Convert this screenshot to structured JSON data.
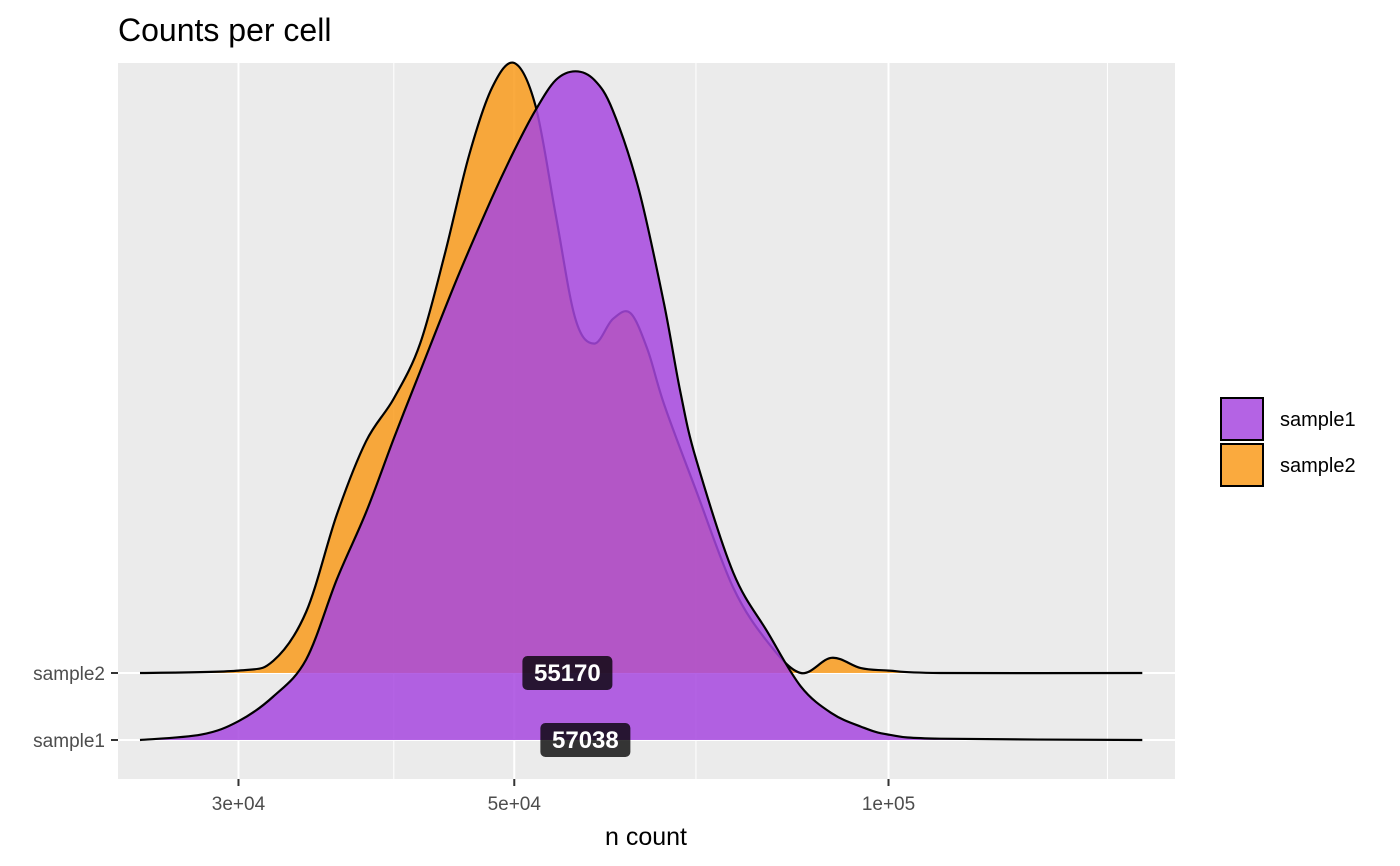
{
  "chart_data": {
    "type": "ridgeline-density",
    "title": "Counts per cell",
    "xlabel": "n count",
    "ylabel": "",
    "x_scale": "log10",
    "xlim": [
      24000,
      170000
    ],
    "x_ticks": [
      {
        "value": 30000,
        "label": "3e+04"
      },
      {
        "value": 50000,
        "label": "5e+04"
      },
      {
        "value": 100000,
        "label": "1e+05"
      }
    ],
    "x_minor_ticks": [
      40000,
      70000,
      150000
    ],
    "categories": [
      "sample1",
      "sample2"
    ],
    "grid": true,
    "legend": {
      "position": "right",
      "entries": [
        "sample1",
        "sample2"
      ]
    },
    "series": [
      {
        "name": "sample1",
        "color": "#A748DF",
        "median": 57038,
        "median_label": "57038",
        "density": [
          [
            25000,
            0.0
          ],
          [
            28000,
            0.008
          ],
          [
            30000,
            0.028
          ],
          [
            32000,
            0.065
          ],
          [
            34000,
            0.12
          ],
          [
            36000,
            0.24
          ],
          [
            38000,
            0.34
          ],
          [
            40000,
            0.45
          ],
          [
            42000,
            0.55
          ],
          [
            45000,
            0.69
          ],
          [
            48000,
            0.81
          ],
          [
            50000,
            0.88
          ],
          [
            52000,
            0.94
          ],
          [
            54000,
            0.985
          ],
          [
            56000,
            0.998
          ],
          [
            58000,
            0.985
          ],
          [
            60000,
            0.94
          ],
          [
            63000,
            0.82
          ],
          [
            66000,
            0.65
          ],
          [
            68000,
            0.52
          ],
          [
            70000,
            0.42
          ],
          [
            75000,
            0.25
          ],
          [
            80000,
            0.16
          ],
          [
            85000,
            0.08
          ],
          [
            90000,
            0.04
          ],
          [
            95000,
            0.02
          ],
          [
            100000,
            0.008
          ],
          [
            110000,
            0.002
          ],
          [
            160000,
            0.0
          ]
        ]
      },
      {
        "name": "sample2",
        "color": "#F99B1C",
        "median": 55170,
        "median_label": "55170",
        "density": [
          [
            25000,
            0.0
          ],
          [
            30000,
            0.004
          ],
          [
            32000,
            0.02
          ],
          [
            34000,
            0.1
          ],
          [
            36000,
            0.26
          ],
          [
            38000,
            0.38
          ],
          [
            40000,
            0.45
          ],
          [
            42000,
            0.54
          ],
          [
            44000,
            0.69
          ],
          [
            46000,
            0.85
          ],
          [
            48000,
            0.96
          ],
          [
            50000,
            1.0
          ],
          [
            52000,
            0.93
          ],
          [
            54000,
            0.75
          ],
          [
            56000,
            0.58
          ],
          [
            58000,
            0.54
          ],
          [
            60000,
            0.58
          ],
          [
            62000,
            0.59
          ],
          [
            64000,
            0.53
          ],
          [
            66000,
            0.44
          ],
          [
            70000,
            0.3
          ],
          [
            75000,
            0.14
          ],
          [
            80000,
            0.05
          ],
          [
            85000,
            0.0
          ],
          [
            90000,
            0.025
          ],
          [
            95000,
            0.008
          ],
          [
            100000,
            0.004
          ],
          [
            110000,
            0.0
          ],
          [
            160000,
            0.0
          ]
        ]
      }
    ]
  }
}
